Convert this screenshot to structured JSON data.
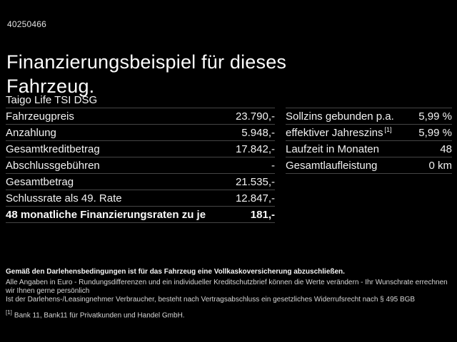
{
  "ref_number": "40250466",
  "title": "Finanzierungsbeispiel für dieses Fahrzeug.",
  "model": "Taigo Life TSI DSG",
  "finance_table": {
    "rows": [
      {
        "label": "Fahrzeugpreis",
        "value": "23.790,-"
      },
      {
        "label": "Anzahlung",
        "value": "5.948,-"
      },
      {
        "label": "Gesamtkreditbetrag",
        "value": "17.842,-"
      },
      {
        "label": "Abschlussgebühren",
        "value": "-"
      },
      {
        "label": "Gesamtbetrag",
        "value": "21.535,-"
      },
      {
        "label": "Schlussrate als 49. Rate",
        "value": "12.847,-"
      },
      {
        "label": "48 monatliche Finanzierungsraten zu je",
        "value": "181,-"
      }
    ]
  },
  "conditions_table": {
    "rows": [
      {
        "label": "Sollzins gebunden p.a.",
        "footnote": "",
        "value": "5,99 %"
      },
      {
        "label": "effektiver Jahreszins",
        "footnote": "[1]",
        "value": "5,99 %"
      },
      {
        "label": "Laufzeit in Monaten",
        "footnote": "",
        "value": "48"
      },
      {
        "label": "Gesamtlaufleistung",
        "footnote": "",
        "value": "0 km"
      }
    ]
  },
  "footer": {
    "insurance_note": "Gemäß den Darlehensbedingungen ist für das Fahrzeug eine Vollkaskoversicherung abzuschließen.",
    "disclaimer_line1": "Alle Angaben in Euro - Rundungsdifferenzen und ein individueller Kreditschutzbrief können die Werte verändern - Ihr Wunschrate errechnen wir Ihnen gerne persönlich",
    "disclaimer_line2": "Ist der Darlehens-/Leasingnehmer Verbraucher, besteht nach Vertragsabschluss ein gesetzliches Widerrufsrecht nach § 495 BGB",
    "footnote_marker": "[1]",
    "footnote_text": "Bank 11, Bank11 für Privatkunden und Handel GmbH."
  },
  "colors": {
    "background": "#000000",
    "text": "#ffffff",
    "separator": "#454545"
  }
}
